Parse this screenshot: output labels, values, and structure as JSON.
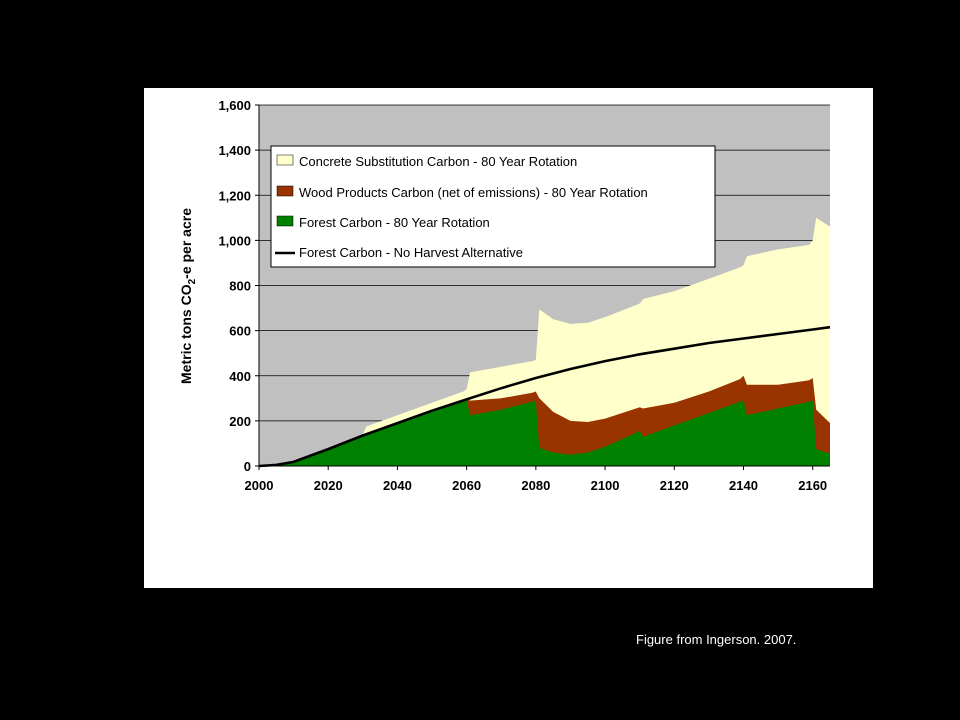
{
  "caption": "Figure from Ingerson. 2007.",
  "chart_data": {
    "type": "area",
    "title": "",
    "xlabel": "",
    "ylabel": "Metric tons CO₂-e per acre",
    "ylabel_parts": [
      "Metric tons CO",
      "2",
      "-e per acre"
    ],
    "xlim": [
      2000,
      2165
    ],
    "ylim": [
      0,
      1600
    ],
    "x_ticks": [
      2000,
      2020,
      2040,
      2060,
      2080,
      2100,
      2120,
      2140,
      2160
    ],
    "y_ticks": [
      0,
      200,
      400,
      600,
      800,
      1000,
      1200,
      1400,
      1600
    ],
    "y_tick_labels": [
      "0",
      "200",
      "400",
      "600",
      "800",
      "1,000",
      "1,200",
      "1,400",
      "1,600"
    ],
    "grid": true,
    "legend_position": "top-left",
    "colors": {
      "plot_bg": "#c0c0c0",
      "concrete": "#ffffcc",
      "wood": "#993300",
      "forest": "#008000",
      "no_harvest": "#000000",
      "grid": "#000000"
    },
    "series": [
      {
        "name": "Concrete Substitution Carbon - 80 Year Rotation",
        "kind": "area-top",
        "color_key": "concrete",
        "x": [
          2000,
          2005,
          2010,
          2020,
          2030,
          2031,
          2040,
          2050,
          2059,
          2060,
          2061,
          2070,
          2079,
          2080,
          2081,
          2085,
          2090,
          2095,
          2100,
          2110,
          2111,
          2120,
          2130,
          2139,
          2140,
          2141,
          2150,
          2159,
          2160,
          2161,
          2165
        ],
        "values": [
          0,
          5,
          18,
          75,
          140,
          175,
          225,
          280,
          330,
          340,
          415,
          440,
          465,
          470,
          695,
          650,
          630,
          635,
          660,
          720,
          740,
          775,
          830,
          880,
          890,
          930,
          960,
          980,
          1000,
          1100,
          1060
        ]
      },
      {
        "name": "Wood Products Carbon (net of emissions) - 80 Year Rotation",
        "kind": "area-top",
        "color_key": "wood",
        "x": [
          2000,
          2005,
          2010,
          2020,
          2030,
          2040,
          2050,
          2059,
          2060,
          2061,
          2070,
          2079,
          2080,
          2081,
          2085,
          2090,
          2095,
          2100,
          2110,
          2111,
          2120,
          2130,
          2139,
          2140,
          2141,
          2150,
          2159,
          2160,
          2161,
          2165
        ],
        "values": [
          0,
          5,
          18,
          75,
          135,
          190,
          240,
          290,
          295,
          290,
          300,
          325,
          330,
          300,
          240,
          200,
          195,
          210,
          260,
          255,
          280,
          330,
          385,
          400,
          360,
          360,
          380,
          390,
          250,
          190
        ]
      },
      {
        "name": "Forest Carbon - 80 Year Rotation",
        "kind": "area-top",
        "color_key": "forest",
        "x": [
          2000,
          2005,
          2010,
          2020,
          2030,
          2040,
          2050,
          2059,
          2060,
          2061,
          2070,
          2079,
          2080,
          2081,
          2085,
          2090,
          2095,
          2100,
          2110,
          2111,
          2120,
          2130,
          2139,
          2140,
          2141,
          2150,
          2159,
          2160,
          2161,
          2165
        ],
        "values": [
          0,
          5,
          18,
          75,
          135,
          190,
          240,
          285,
          290,
          225,
          250,
          285,
          290,
          80,
          60,
          50,
          60,
          85,
          155,
          130,
          180,
          235,
          285,
          290,
          225,
          255,
          285,
          290,
          75,
          55
        ]
      },
      {
        "name": "Forest Carbon - No Harvest Alternative",
        "kind": "line",
        "color_key": "no_harvest",
        "x": [
          2000,
          2005,
          2010,
          2020,
          2030,
          2040,
          2050,
          2060,
          2070,
          2080,
          2090,
          2100,
          2110,
          2120,
          2130,
          2140,
          2150,
          2160,
          2165
        ],
        "values": [
          0,
          5,
          18,
          75,
          135,
          190,
          245,
          295,
          345,
          390,
          430,
          465,
          495,
          520,
          545,
          565,
          585,
          605,
          615
        ]
      }
    ]
  }
}
